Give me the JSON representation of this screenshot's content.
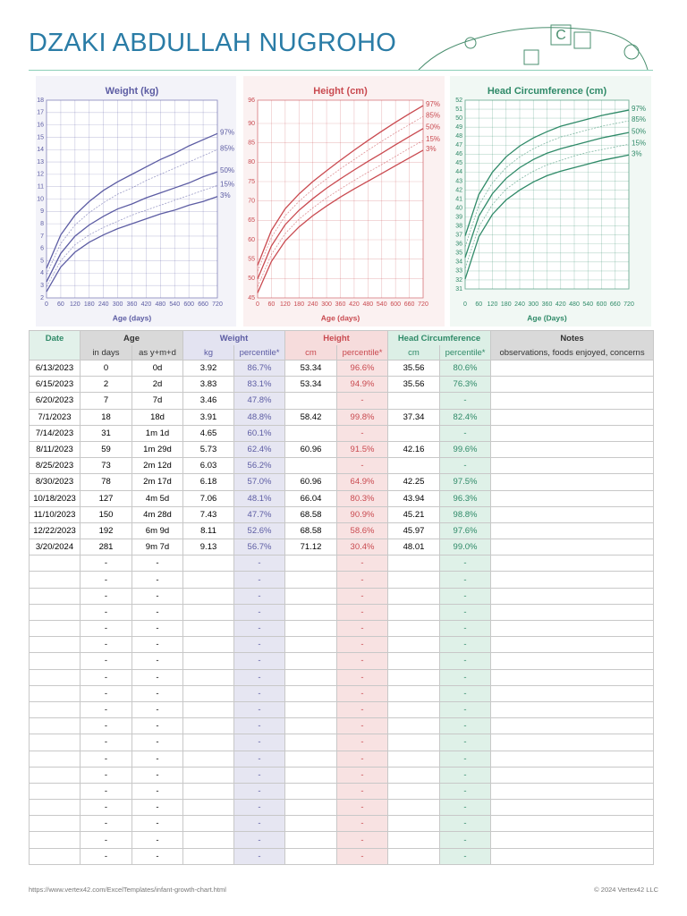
{
  "header": {
    "title": "DZAKI ABDULLAH NUGROHO"
  },
  "chart_data": [
    {
      "type": "line",
      "title": "Weight (kg)",
      "x_label": "Age (days)",
      "color": "#5c5ca3",
      "grid": true,
      "x": [
        0,
        60,
        120,
        180,
        240,
        300,
        360,
        420,
        480,
        540,
        600,
        660,
        720
      ],
      "xlim": [
        0,
        720
      ],
      "xticks": [
        0,
        60,
        120,
        180,
        240,
        300,
        360,
        420,
        480,
        540,
        600,
        660,
        720
      ],
      "ylim": [
        2,
        18
      ],
      "yticks": [
        2,
        3,
        4,
        5,
        6,
        7,
        8,
        9,
        10,
        11,
        12,
        13,
        14,
        15,
        16,
        17,
        18
      ],
      "series": [
        {
          "name": "97%",
          "style": "solid",
          "values": [
            4.4,
            7.1,
            8.7,
            9.8,
            10.7,
            11.4,
            12.0,
            12.6,
            13.2,
            13.7,
            14.3,
            14.8,
            15.3
          ]
        },
        {
          "name": "85%",
          "style": "dotted",
          "values": [
            3.9,
            6.4,
            7.9,
            8.9,
            9.7,
            10.4,
            10.9,
            11.5,
            12.0,
            12.5,
            13.0,
            13.5,
            14.0
          ]
        },
        {
          "name": "50%",
          "style": "solid",
          "values": [
            3.3,
            5.6,
            7.0,
            7.9,
            8.6,
            9.2,
            9.6,
            10.1,
            10.5,
            10.9,
            11.3,
            11.8,
            12.2
          ]
        },
        {
          "name": "15%",
          "style": "dotted",
          "values": [
            2.9,
            5.0,
            6.3,
            7.1,
            7.7,
            8.2,
            8.7,
            9.1,
            9.5,
            9.9,
            10.3,
            10.7,
            11.1
          ]
        },
        {
          "name": "3%",
          "style": "solid",
          "values": [
            2.5,
            4.5,
            5.7,
            6.5,
            7.1,
            7.6,
            8.0,
            8.4,
            8.8,
            9.1,
            9.5,
            9.8,
            10.2
          ]
        }
      ]
    },
    {
      "type": "line",
      "title": "Height (cm)",
      "x_label": "Age (days)",
      "color": "#c94a50",
      "grid": true,
      "x": [
        0,
        60,
        120,
        180,
        240,
        300,
        360,
        420,
        480,
        540,
        600,
        660,
        720
      ],
      "xlim": [
        0,
        720
      ],
      "xticks": [
        0,
        60,
        120,
        180,
        240,
        300,
        360,
        420,
        480,
        540,
        600,
        660,
        720
      ],
      "ylim": [
        45,
        96
      ],
      "yticks": [
        45,
        50,
        55,
        60,
        65,
        70,
        75,
        80,
        85,
        90,
        96
      ],
      "series": [
        {
          "name": "97%",
          "style": "solid",
          "values": [
            53.4,
            62.4,
            68.0,
            71.8,
            75.0,
            77.8,
            80.5,
            83.1,
            85.6,
            88.0,
            90.3,
            92.5,
            94.6
          ]
        },
        {
          "name": "85%",
          "style": "dotted",
          "values": [
            51.9,
            60.6,
            66.2,
            69.9,
            73.0,
            75.7,
            78.3,
            80.7,
            83.1,
            85.4,
            87.6,
            89.7,
            91.8
          ]
        },
        {
          "name": "50%",
          "style": "solid",
          "values": [
            49.9,
            58.4,
            63.9,
            67.6,
            70.6,
            73.3,
            75.7,
            78.0,
            80.2,
            82.3,
            84.5,
            86.6,
            88.7
          ]
        },
        {
          "name": "15%",
          "style": "dotted",
          "values": [
            47.9,
            56.2,
            61.6,
            65.3,
            68.2,
            70.8,
            73.1,
            75.3,
            77.4,
            79.4,
            81.5,
            83.6,
            85.6
          ]
        },
        {
          "name": "3%",
          "style": "solid",
          "values": [
            46.3,
            54.4,
            59.7,
            63.3,
            66.2,
            68.7,
            71.0,
            73.1,
            75.1,
            77.1,
            79.1,
            81.1,
            83.1
          ]
        }
      ]
    },
    {
      "type": "line",
      "title": "Head Circumference (cm)",
      "x_label": "Age (Days)",
      "color": "#2f8a68",
      "grid": true,
      "x": [
        0,
        60,
        120,
        180,
        240,
        300,
        360,
        420,
        480,
        540,
        600,
        660,
        720
      ],
      "xlim": [
        0,
        720
      ],
      "xticks": [
        0,
        60,
        120,
        180,
        240,
        300,
        360,
        420,
        480,
        540,
        600,
        660,
        720
      ],
      "ylim": [
        31,
        52
      ],
      "yticks": [
        31,
        32,
        33,
        34,
        35,
        36,
        37,
        38,
        39,
        40,
        41,
        42,
        43,
        44,
        45,
        46,
        47,
        48,
        49,
        50,
        51,
        52
      ],
      "series": [
        {
          "name": "97%",
          "style": "solid",
          "values": [
            36.9,
            41.5,
            44.0,
            45.7,
            46.9,
            47.8,
            48.5,
            49.1,
            49.5,
            49.9,
            50.3,
            50.6,
            50.9
          ]
        },
        {
          "name": "85%",
          "style": "dotted",
          "values": [
            35.7,
            40.3,
            42.8,
            44.5,
            45.7,
            46.6,
            47.3,
            47.9,
            48.3,
            48.7,
            49.1,
            49.4,
            49.7
          ]
        },
        {
          "name": "50%",
          "style": "solid",
          "values": [
            34.5,
            39.1,
            41.6,
            43.3,
            44.5,
            45.4,
            46.1,
            46.6,
            47.0,
            47.4,
            47.8,
            48.1,
            48.4
          ]
        },
        {
          "name": "15%",
          "style": "dotted",
          "values": [
            33.3,
            37.9,
            40.4,
            42.1,
            43.2,
            44.1,
            44.8,
            45.3,
            45.8,
            46.2,
            46.5,
            46.8,
            47.1
          ]
        },
        {
          "name": "3%",
          "style": "solid",
          "values": [
            32.1,
            36.8,
            39.3,
            40.9,
            42.0,
            42.9,
            43.6,
            44.1,
            44.5,
            44.9,
            45.3,
            45.6,
            45.9
          ]
        }
      ]
    }
  ],
  "table": {
    "group_headers": [
      "Date",
      "Age",
      "Weight",
      "Height",
      "Head Circumference",
      "Notes"
    ],
    "sub_headers": [
      "in days",
      "as y+m+d",
      "kg",
      "percentile*",
      "cm",
      "percentile*",
      "cm",
      "percentile*",
      "observations, foods enjoyed, concerns"
    ],
    "rows": [
      [
        "6/13/2023",
        "0",
        "0d",
        "3.92",
        "86.7%",
        "53.34",
        "96.6%",
        "35.56",
        "80.6%",
        null
      ],
      [
        "6/15/2023",
        "2",
        "2d",
        "3.83",
        "83.1%",
        "53.34",
        "94.9%",
        "35.56",
        "76.3%",
        null
      ],
      [
        "6/20/2023",
        "7",
        "7d",
        "3.46",
        "47.8%",
        null,
        "-",
        null,
        "-",
        null
      ],
      [
        "7/1/2023",
        "18",
        "18d",
        "3.91",
        "48.8%",
        "58.42",
        "99.8%",
        "37.34",
        "82.4%",
        null
      ],
      [
        "7/14/2023",
        "31",
        "1m 1d",
        "4.65",
        "60.1%",
        null,
        "-",
        null,
        "-",
        null
      ],
      [
        "8/11/2023",
        "59",
        "1m 29d",
        "5.73",
        "62.4%",
        "60.96",
        "91.5%",
        "42.16",
        "99.6%",
        null
      ],
      [
        "8/25/2023",
        "73",
        "2m 12d",
        "6.03",
        "56.2%",
        null,
        "-",
        null,
        "-",
        null
      ],
      [
        "8/30/2023",
        "78",
        "2m 17d",
        "6.18",
        "57.0%",
        "60.96",
        "64.9%",
        "42.25",
        "97.5%",
        null
      ],
      [
        "10/18/2023",
        "127",
        "4m 5d",
        "7.06",
        "48.1%",
        "66.04",
        "80.3%",
        "43.94",
        "96.3%",
        null
      ],
      [
        "11/10/2023",
        "150",
        "4m 28d",
        "7.43",
        "47.7%",
        "68.58",
        "90.9%",
        "45.21",
        "98.8%",
        null
      ],
      [
        "12/22/2023",
        "192",
        "6m 9d",
        "8.11",
        "52.6%",
        "68.58",
        "58.6%",
        "45.97",
        "97.6%",
        null
      ],
      [
        "3/20/2024",
        "281",
        "9m 7d",
        "9.13",
        "56.7%",
        "71.12",
        "30.4%",
        "48.01",
        "99.0%",
        null
      ],
      [
        null,
        "-",
        "-",
        null,
        "-",
        null,
        "-",
        null,
        "-",
        null
      ],
      [
        null,
        "-",
        "-",
        null,
        "-",
        null,
        "-",
        null,
        "-",
        null
      ],
      [
        null,
        "-",
        "-",
        null,
        "-",
        null,
        "-",
        null,
        "-",
        null
      ],
      [
        null,
        "-",
        "-",
        null,
        "-",
        null,
        "-",
        null,
        "-",
        null
      ],
      [
        null,
        "-",
        "-",
        null,
        "-",
        null,
        "-",
        null,
        "-",
        null
      ],
      [
        null,
        "-",
        "-",
        null,
        "-",
        null,
        "-",
        null,
        "-",
        null
      ],
      [
        null,
        "-",
        "-",
        null,
        "-",
        null,
        "-",
        null,
        "-",
        null
      ],
      [
        null,
        "-",
        "-",
        null,
        "-",
        null,
        "-",
        null,
        "-",
        null
      ],
      [
        null,
        "-",
        "-",
        null,
        "-",
        null,
        "-",
        null,
        "-",
        null
      ],
      [
        null,
        "-",
        "-",
        null,
        "-",
        null,
        "-",
        null,
        "-",
        null
      ],
      [
        null,
        "-",
        "-",
        null,
        "-",
        null,
        "-",
        null,
        "-",
        null
      ],
      [
        null,
        "-",
        "-",
        null,
        "-",
        null,
        "-",
        null,
        "-",
        null
      ],
      [
        null,
        "-",
        "-",
        null,
        "-",
        null,
        "-",
        null,
        "-",
        null
      ],
      [
        null,
        "-",
        "-",
        null,
        "-",
        null,
        "-",
        null,
        "-",
        null
      ],
      [
        null,
        "-",
        "-",
        null,
        "-",
        null,
        "-",
        null,
        "-",
        null
      ],
      [
        null,
        "-",
        "-",
        null,
        "-",
        null,
        "-",
        null,
        "-",
        null
      ],
      [
        null,
        "-",
        "-",
        null,
        "-",
        null,
        "-",
        null,
        "-",
        null
      ],
      [
        null,
        "-",
        "-",
        null,
        "-",
        null,
        "-",
        null,
        "-",
        null
      ],
      [
        null,
        "-",
        "-",
        null,
        "-",
        null,
        "-",
        null,
        "-",
        null
      ]
    ]
  },
  "footer": {
    "url": "https://www.vertex42.com/ExcelTemplates/infant-growth-chart.html",
    "copyright": "© 2024 Vertex42 LLC"
  }
}
